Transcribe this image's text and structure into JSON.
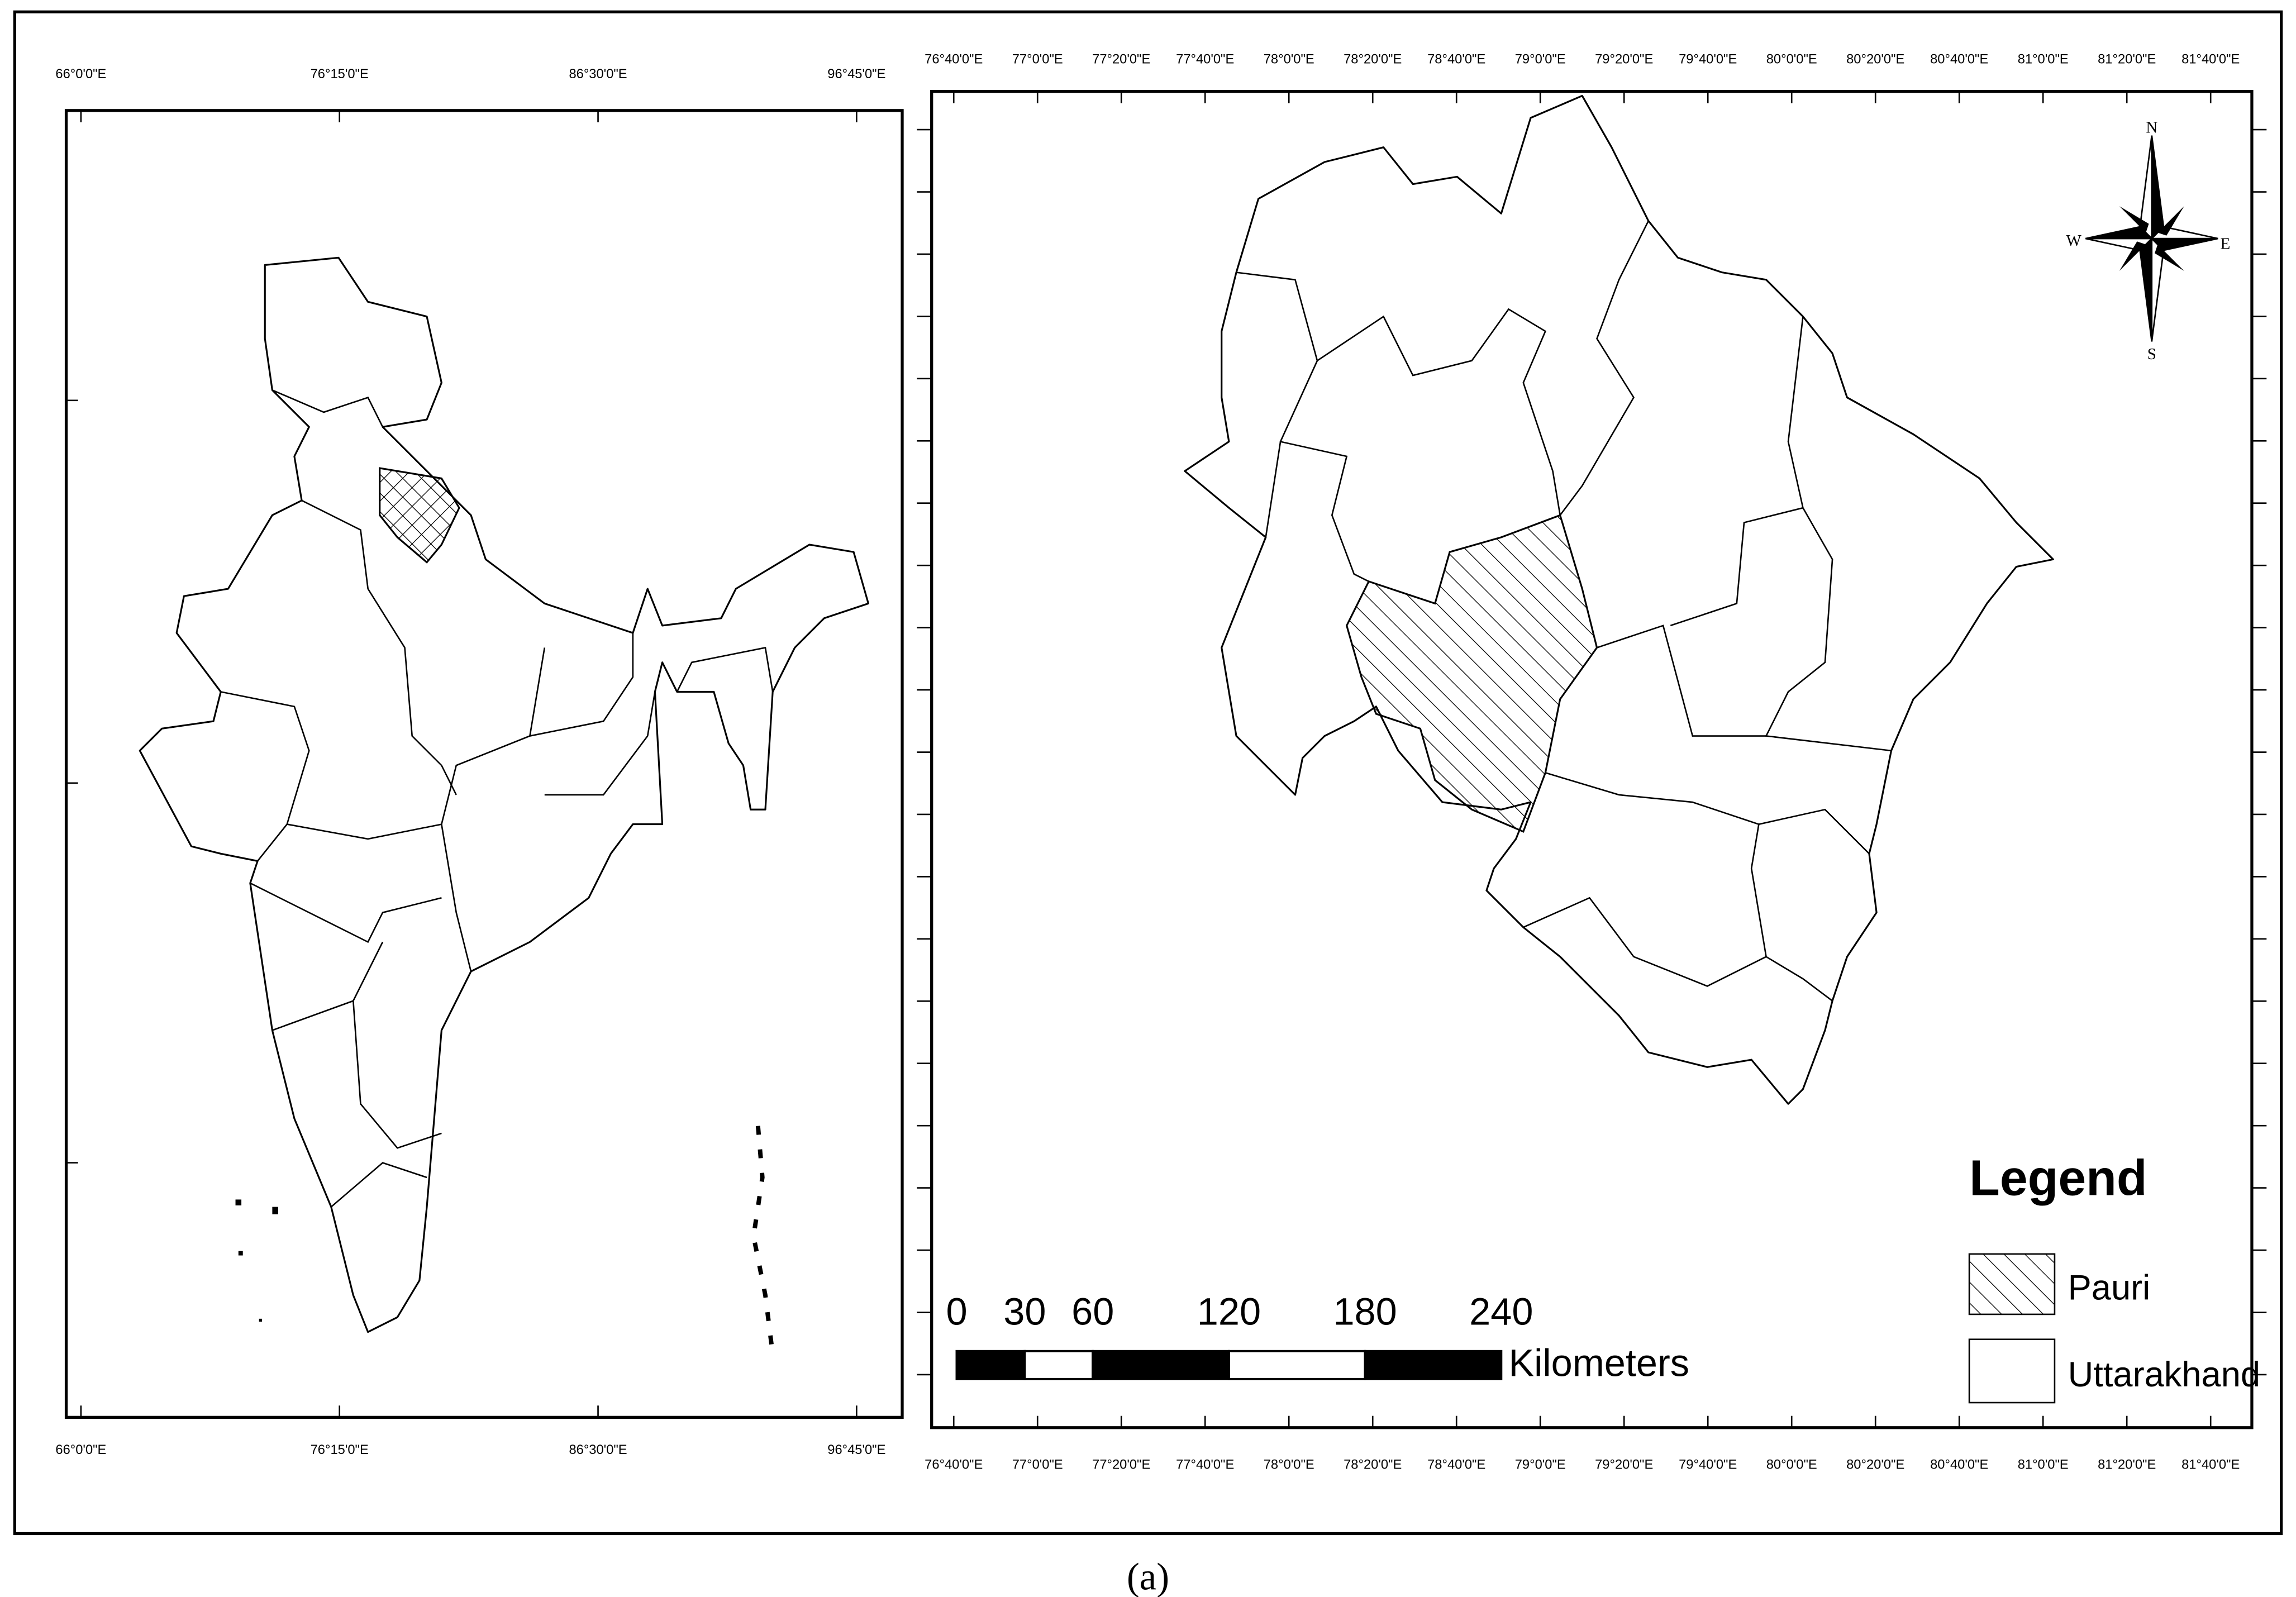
{
  "left_map": {
    "lon_labels": [
      "66°0'0\"E",
      "76°15'0\"E",
      "86°30'0\"E",
      "96°45'0\"E"
    ]
  },
  "right_map": {
    "lon_labels": [
      "76°40'0\"E",
      "77°0'0\"E",
      "77°20'0\"E",
      "77°40'0\"E",
      "78°0'0\"E",
      "78°20'0\"E",
      "78°40'0\"E",
      "79°0'0\"E",
      "79°20'0\"E",
      "79°40'0\"E",
      "80°0'0\"E",
      "80°20'0\"E",
      "80°40'0\"E",
      "81°0'0\"E",
      "81°20'0\"E",
      "81°40'0\"E"
    ]
  },
  "compass": {
    "n": "N",
    "e": "E",
    "s": "S",
    "w": "W"
  },
  "scale_bar": {
    "ticks": [
      0,
      30,
      60,
      120,
      180,
      240
    ],
    "unit": "Kilometers"
  },
  "legend": {
    "title": "Legend",
    "items": [
      "Pauri",
      "Uttarakhand"
    ]
  },
  "caption": "(a)"
}
